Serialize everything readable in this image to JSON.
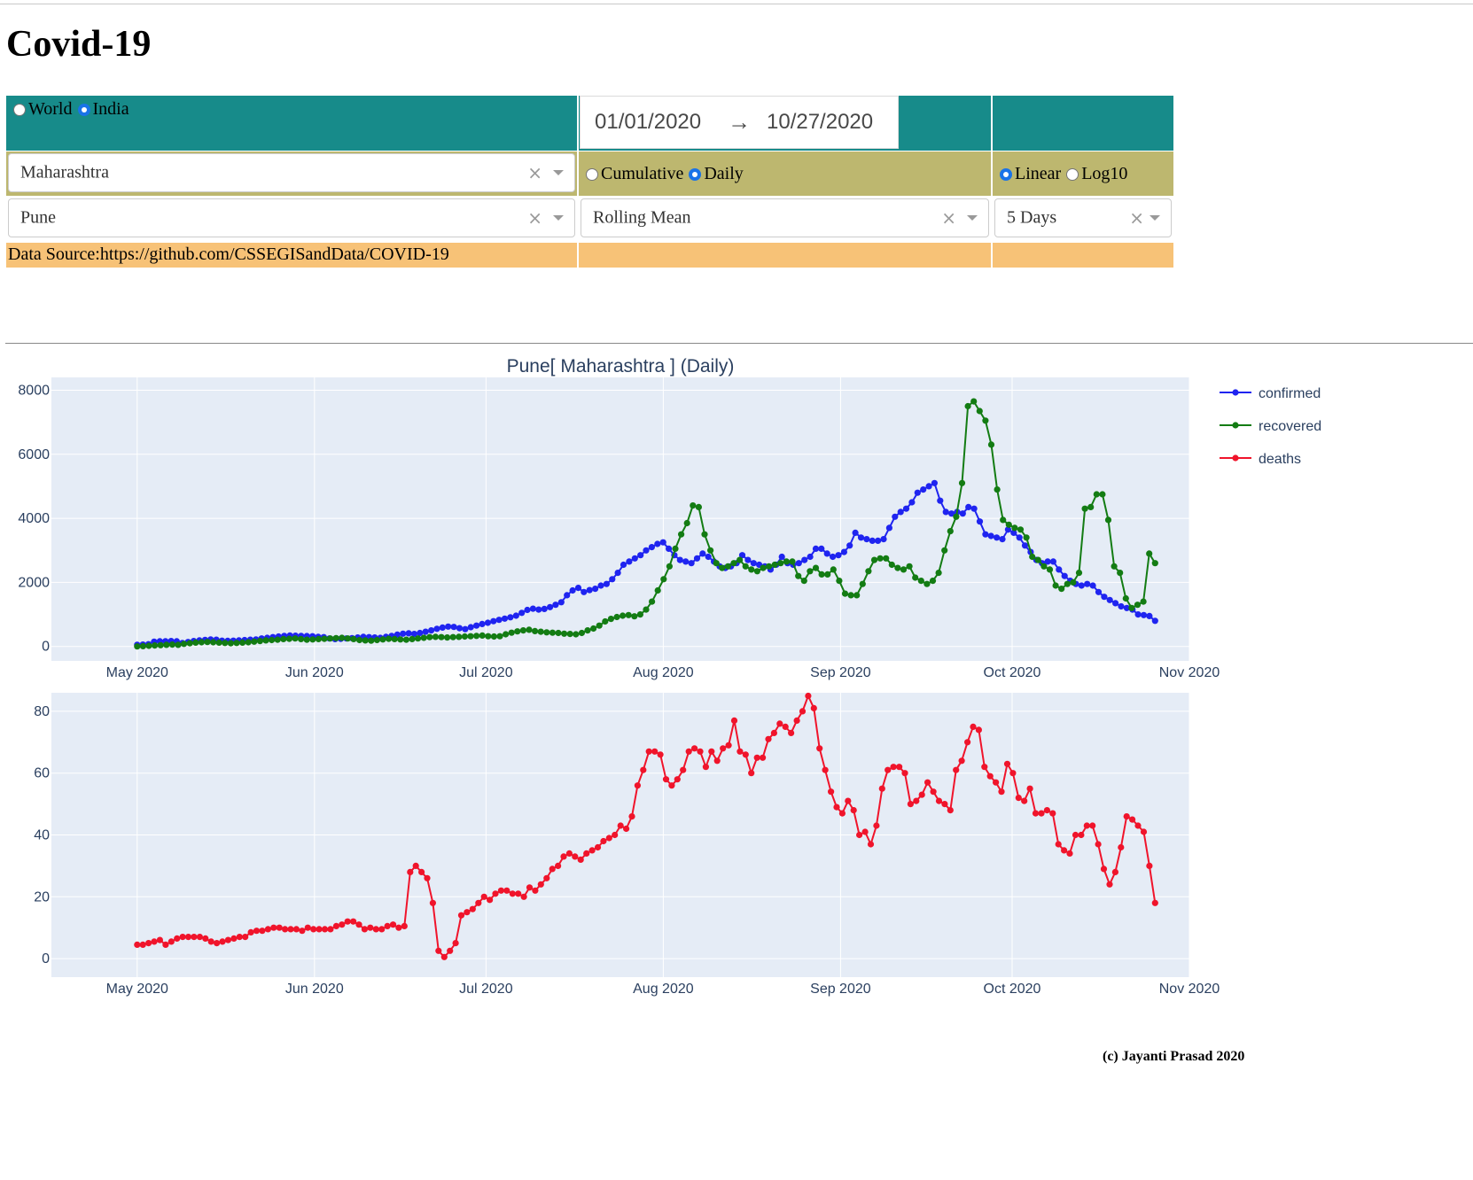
{
  "page_title": "Covid-19",
  "region_toggle": {
    "options": [
      "World",
      "India"
    ],
    "selected": "India"
  },
  "date_range": {
    "start": "01/01/2020",
    "arrow": "→",
    "end": "10/27/2020"
  },
  "state_dropdown": {
    "value": "Maharashtra",
    "clear": "×"
  },
  "district_dropdown": {
    "value": "Pune",
    "clear": "×"
  },
  "mode_toggle": {
    "options": [
      "Cumulative",
      "Daily"
    ],
    "selected": "Daily"
  },
  "scale_toggle": {
    "options": [
      "Linear",
      "Log10"
    ],
    "selected": "Linear"
  },
  "smoothing_dropdown": {
    "value": "Rolling Mean",
    "clear": "×"
  },
  "window_dropdown": {
    "value": "5 Days",
    "clear": "×"
  },
  "data_source": "Data Source:https://github.com/CSSEGISandData/COVID-19",
  "copyright": "(c) Jayanti Prasad 2020",
  "colors": {
    "teal": "#178b8a",
    "olive": "#bdb76f",
    "orange": "#f7c277",
    "plot_bg": "#e5ecf6",
    "confirmed": "#1f24f0",
    "recovered": "#137c13",
    "deaths": "#f0142b"
  },
  "chart_data": [
    {
      "type": "line",
      "title": "Pune[ Maharashtra ] (Daily)",
      "x_ticks": [
        "May 2020",
        "Jun 2020",
        "Jul 2020",
        "Aug 2020",
        "Sep 2020",
        "Oct 2020",
        "Nov 2020"
      ],
      "xlim": [
        "2020-04-16",
        "2020-11-01"
      ],
      "x_start": "2020-05-01",
      "x_end": "2020-10-26",
      "ylim": [
        -450,
        8400
      ],
      "y_ticks": [
        0,
        2000,
        4000,
        6000,
        8000
      ],
      "grid": true,
      "legend": "top-right",
      "series": [
        {
          "name": "confirmed",
          "values": [
            52,
            60,
            70,
            150,
            160,
            165,
            170,
            160,
            110,
            140,
            170,
            190,
            205,
            220,
            210,
            180,
            175,
            180,
            190,
            200,
            210,
            220,
            250,
            270,
            290,
            310,
            330,
            340,
            335,
            330,
            325,
            320,
            300,
            290,
            250,
            230,
            240,
            250,
            260,
            280,
            300,
            290,
            280,
            270,
            300,
            330,
            370,
            400,
            410,
            390,
            420,
            460,
            500,
            550,
            590,
            620,
            610,
            570,
            540,
            600,
            650,
            700,
            740,
            790,
            830,
            870,
            910,
            960,
            1050,
            1140,
            1180,
            1150,
            1170,
            1230,
            1300,
            1380,
            1600,
            1750,
            1830,
            1700,
            1760,
            1800,
            1900,
            1950,
            2100,
            2300,
            2550,
            2650,
            2750,
            2850,
            3000,
            3100,
            3200,
            3250,
            3050,
            2850,
            2700,
            2650,
            2600,
            2750,
            2900,
            2800,
            2650,
            2500,
            2450,
            2500,
            2600,
            2850,
            2700,
            2600,
            2550,
            2500,
            2400,
            2550,
            2800,
            2600,
            2550,
            2600,
            2700,
            2800,
            3050,
            3050,
            2900,
            2800,
            2850,
            2950,
            3150,
            3550,
            3400,
            3350,
            3300,
            3300,
            3350,
            3700,
            4050,
            4200,
            4300,
            4500,
            4800,
            4900,
            5000,
            5100,
            4550,
            4200,
            4150,
            4200,
            4150,
            4350,
            4300,
            3900,
            3500,
            3450,
            3400,
            3350,
            3650,
            3550,
            3400,
            3150,
            2950,
            2700,
            2600,
            2650,
            2650,
            2400,
            2200,
            2050,
            1950,
            1900,
            1950,
            1900,
            1700,
            1550,
            1450,
            1350,
            1250,
            1200,
            1150,
            1000,
            980,
            950,
            800
          ]
        },
        {
          "name": "recovered",
          "values": [
            0,
            10,
            20,
            30,
            40,
            50,
            60,
            50,
            80,
            100,
            120,
            130,
            140,
            130,
            120,
            110,
            100,
            110,
            120,
            130,
            150,
            170,
            190,
            200,
            210,
            230,
            240,
            250,
            230,
            210,
            220,
            230,
            240,
            250,
            260,
            270,
            250,
            230,
            200,
            190,
            180,
            200,
            220,
            240,
            230,
            220,
            210,
            230,
            250,
            270,
            290,
            300,
            290,
            280,
            290,
            300,
            310,
            320,
            330,
            340,
            320,
            310,
            320,
            380,
            430,
            470,
            500,
            520,
            480,
            460,
            440,
            430,
            420,
            400,
            390,
            380,
            420,
            500,
            560,
            650,
            780,
            860,
            920,
            960,
            980,
            940,
            1000,
            1150,
            1400,
            1750,
            2100,
            2500,
            3050,
            3500,
            3850,
            4400,
            4350,
            3500,
            3000,
            2600,
            2450,
            2500,
            2600,
            2700,
            2500,
            2400,
            2350,
            2450,
            2500,
            2550,
            2600,
            2650,
            2650,
            2200,
            2050,
            2350,
            2450,
            2250,
            2250,
            2400,
            2050,
            1650,
            1600,
            1600,
            1950,
            2350,
            2700,
            2750,
            2750,
            2550,
            2450,
            2400,
            2500,
            2150,
            2050,
            1950,
            2050,
            2300,
            3000,
            3600,
            4050,
            5100,
            7500,
            7650,
            7350,
            7050,
            6300,
            4900,
            3950,
            3800,
            3700,
            3650,
            3400,
            2800,
            2700,
            2500,
            2400,
            1900,
            1800,
            1950,
            2000,
            2300,
            4300,
            4350,
            4750,
            4750,
            3950,
            2500,
            2300,
            1500,
            1200,
            1300,
            1400,
            2900,
            2600
          ]
        }
      ]
    },
    {
      "type": "line",
      "x_ticks": [
        "May 2020",
        "Jun 2020",
        "Jul 2020",
        "Aug 2020",
        "Sep 2020",
        "Oct 2020",
        "Nov 2020"
      ],
      "xlim": [
        "2020-04-16",
        "2020-11-01"
      ],
      "x_start": "2020-05-01",
      "x_end": "2020-10-26",
      "ylim": [
        -6,
        86
      ],
      "y_ticks": [
        0,
        20,
        40,
        60,
        80
      ],
      "grid": true,
      "series": [
        {
          "name": "deaths",
          "values": [
            4.5,
            4.5,
            5,
            5.5,
            6,
            4.5,
            5.5,
            6.5,
            7,
            7,
            7,
            7,
            6.5,
            5.5,
            5,
            5.5,
            6,
            6.5,
            7,
            7,
            8.5,
            9,
            9,
            9.5,
            10,
            10,
            9.5,
            9.5,
            9.5,
            9,
            10,
            9.5,
            9.5,
            9.5,
            9.5,
            10.5,
            11,
            12,
            12,
            11,
            9.5,
            10,
            9.5,
            9.5,
            10.5,
            11,
            10,
            10.5,
            28,
            30,
            28,
            26,
            18,
            2.5,
            0.5,
            2.5,
            5,
            14,
            15,
            16,
            18,
            20,
            19,
            21,
            22,
            22,
            21,
            21,
            20,
            23,
            22,
            24,
            26,
            29,
            30,
            33,
            34,
            33,
            32,
            34,
            35,
            36,
            38,
            39,
            40,
            43,
            42,
            46,
            56,
            61,
            67,
            67,
            66,
            58,
            56,
            58,
            61,
            67,
            68,
            67,
            62,
            67,
            64,
            68,
            69,
            77,
            67,
            66,
            60,
            65,
            65,
            71,
            73,
            76,
            75,
            73,
            77,
            80,
            85,
            81,
            68,
            61,
            54,
            49,
            47,
            51,
            48,
            40,
            41,
            37,
            43,
            55,
            61,
            62,
            62,
            60,
            50,
            51,
            53,
            57,
            54,
            51,
            50,
            48,
            61,
            64,
            70,
            75,
            74,
            62,
            59,
            57,
            54,
            63,
            60,
            52,
            51,
            55,
            47,
            47,
            48,
            47,
            37,
            35,
            34,
            40,
            40,
            43,
            43,
            37,
            29,
            24,
            28,
            36,
            46,
            45,
            43,
            41,
            30,
            18
          ]
        }
      ]
    }
  ]
}
